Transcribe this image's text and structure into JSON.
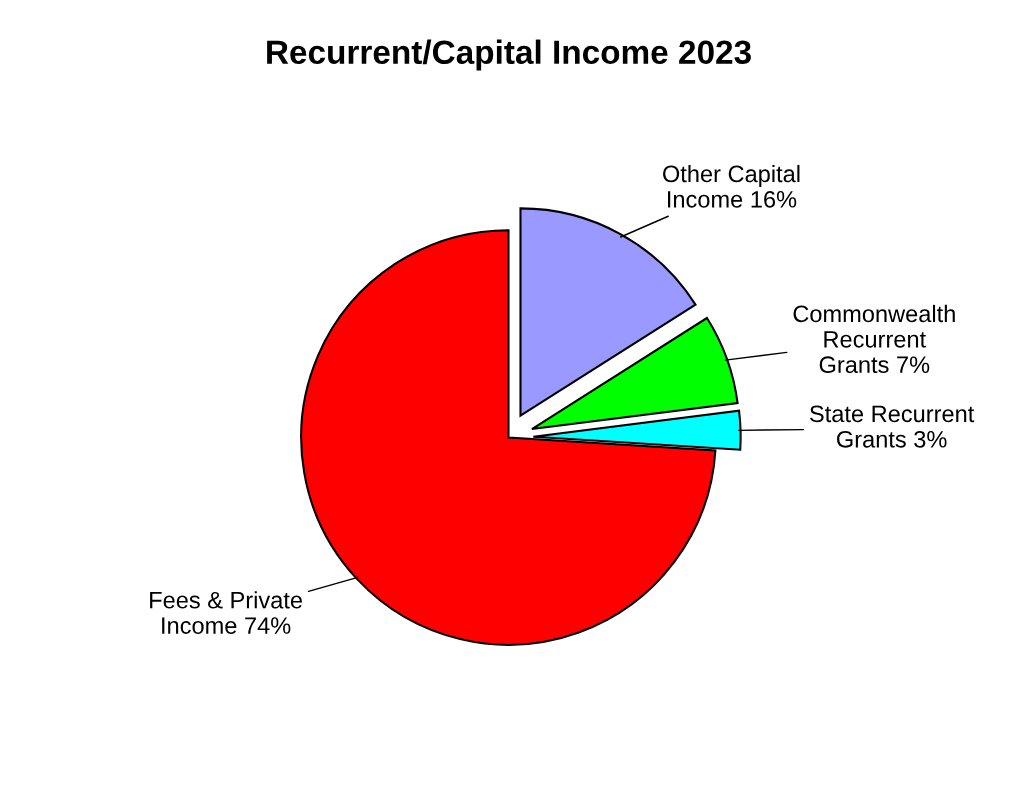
{
  "chart_data": {
    "type": "pie",
    "title": "Recurrent/Capital Income 2023",
    "categories": [
      "Other Capital Income",
      "Commonwealth Recurrent Grants",
      "State Recurrent Grants",
      "Fees & Private Income"
    ],
    "values": [
      16,
      7,
      3,
      74
    ],
    "value_labels": [
      "16%",
      "7%",
      "3%",
      "74%"
    ],
    "colors": [
      "#9999ff",
      "#00ff00",
      "#00ffff",
      "#ff0000"
    ],
    "legend": false
  }
}
